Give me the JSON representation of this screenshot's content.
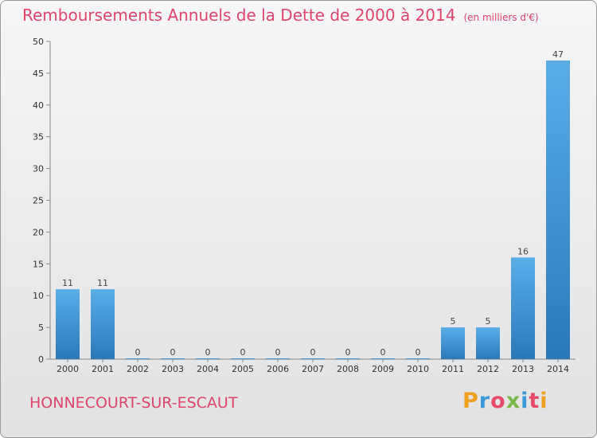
{
  "header": {
    "title": "Remboursements Annuels de la Dette de 2000 à 2014",
    "subtitle": "(en milliers d'€)"
  },
  "footer": {
    "commune": "HONNECOURT-SUR-ESCAUT",
    "logo": {
      "letters": [
        "P",
        "r",
        "o",
        "x",
        "i",
        "t",
        "i"
      ],
      "colors": [
        "#f0a020",
        "#3a9ad9",
        "#e84a6a",
        "#7ab648",
        "#3a9ad9",
        "#e84a6a",
        "#f0a020"
      ]
    }
  },
  "colors": {
    "title": "#e0446d",
    "bar_light": "#5aaee8",
    "bar_dark": "#2a78b8"
  },
  "chart_data": {
    "type": "bar",
    "title": "Remboursements Annuels de la Dette de 2000 à 2014",
    "subtitle": "(en milliers d'€)",
    "categories": [
      "2000",
      "2001",
      "2002",
      "2003",
      "2004",
      "2005",
      "2006",
      "2007",
      "2008",
      "2009",
      "2010",
      "2011",
      "2012",
      "2013",
      "2014"
    ],
    "values": [
      11,
      11,
      0,
      0,
      0,
      0,
      0,
      0,
      0,
      0,
      0,
      5,
      5,
      16,
      47
    ],
    "data_labels": [
      "11",
      "11",
      "0",
      "0",
      "0",
      "0",
      "0",
      "0",
      "0",
      "0",
      "0",
      "5",
      "5",
      "16",
      "47"
    ],
    "yticks": [
      0,
      5,
      10,
      15,
      20,
      25,
      30,
      35,
      40,
      45,
      50
    ],
    "ylim": [
      0,
      50
    ],
    "xlabel": "",
    "ylabel": "",
    "grid": false,
    "legend": "none"
  }
}
